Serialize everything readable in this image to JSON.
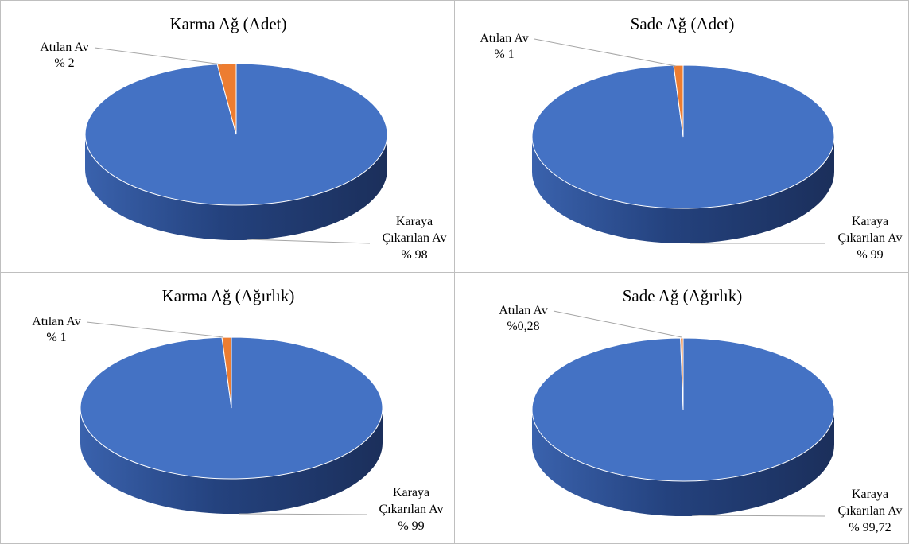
{
  "chart_data": [
    {
      "type": "pie",
      "title": "Karma Ağ (Adet)",
      "categories": [
        "Karaya Çıkarılan Av",
        "Atılan Av"
      ],
      "values": [
        98,
        2
      ],
      "data_labels": [
        "% 98",
        "% 2"
      ],
      "colors": [
        "#4472c4",
        "#ed7d31"
      ],
      "legend": "none"
    },
    {
      "type": "pie",
      "title": "Sade Ağ (Adet)",
      "categories": [
        "Karaya Çıkarılan Av",
        "Atılan Av"
      ],
      "values": [
        99,
        1
      ],
      "data_labels": [
        "% 99",
        "% 1"
      ],
      "colors": [
        "#4472c4",
        "#ed7d31"
      ],
      "legend": "none"
    },
    {
      "type": "pie",
      "title": "Karma Ağ (Ağırlık)",
      "categories": [
        "Karaya Çıkarılan Av",
        "Atılan Av"
      ],
      "values": [
        99,
        1
      ],
      "data_labels": [
        "% 99",
        "% 1"
      ],
      "colors": [
        "#4472c4",
        "#ed7d31"
      ],
      "legend": "none"
    },
    {
      "type": "pie",
      "title": "Sade Ağ (Ağırlık)",
      "categories": [
        "Karaya Çıkarılan Av",
        "Atılan Av"
      ],
      "values": [
        99.72,
        0.28
      ],
      "data_labels": [
        "% 99,72",
        "%0,28"
      ],
      "colors": [
        "#4472c4",
        "#ed7d31"
      ],
      "legend": "none"
    }
  ]
}
